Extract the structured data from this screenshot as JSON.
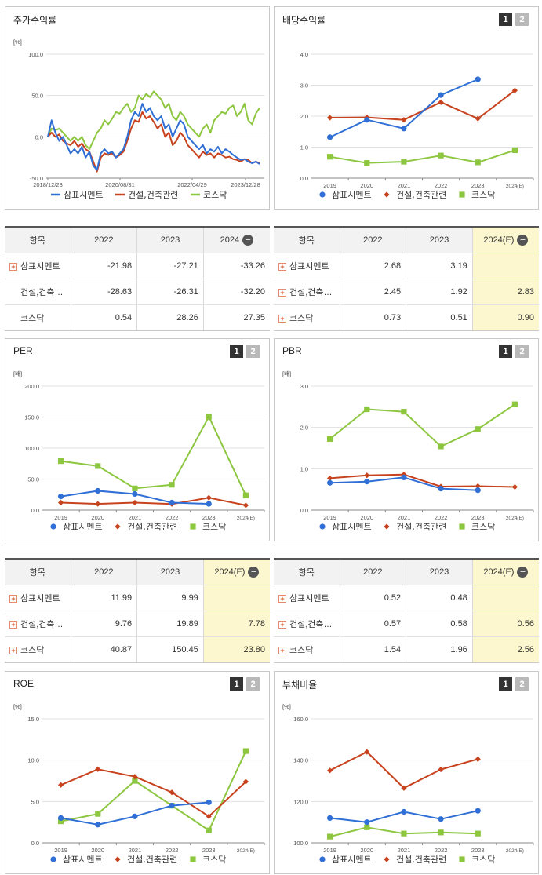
{
  "colors": {
    "series1": "#2f6fd6",
    "series2": "#c8421e",
    "series3": "#8dc63f",
    "highlight": "#fdf7cf"
  },
  "legend_items": [
    "삼표시멘트",
    "건설,건축관련",
    "코스닥"
  ],
  "chart_data": [
    {
      "id": "price",
      "type": "line",
      "title": "주가수익률",
      "unit": "[%]",
      "ylim": [
        -50,
        100
      ],
      "yticks": [
        "100.0",
        "50.0",
        "0.0",
        "-50.0"
      ],
      "xticks": [
        "2018/12/28",
        "2020/08/31",
        "2022/04/29",
        "2023/12/28"
      ],
      "series": [
        {
          "name": "삼표시멘트",
          "values": [
            0,
            20,
            5,
            -5,
            0,
            -10,
            -20,
            -15,
            -20,
            -12,
            -25,
            -18,
            -35,
            -40,
            -20,
            -15,
            -20,
            -18,
            -25,
            -20,
            -15,
            0,
            20,
            30,
            25,
            40,
            30,
            35,
            25,
            20,
            25,
            10,
            15,
            0,
            10,
            20,
            15,
            0,
            -5,
            -10,
            -15,
            -10,
            -20,
            -15,
            -18,
            -12,
            -20,
            -15,
            -18,
            -22,
            -25,
            -28,
            -27,
            -30,
            -32,
            -30,
            -33
          ]
        },
        {
          "name": "건설,건축관련",
          "values": [
            0,
            5,
            0,
            3,
            -5,
            -8,
            -10,
            -5,
            -12,
            -8,
            -15,
            -18,
            -30,
            -42,
            -25,
            -20,
            -22,
            -20,
            -25,
            -22,
            -18,
            -5,
            10,
            20,
            18,
            30,
            22,
            25,
            18,
            10,
            15,
            0,
            5,
            -10,
            -5,
            5,
            0,
            -10,
            -15,
            -20,
            -25,
            -18,
            -22,
            -20,
            -25,
            -20,
            -22,
            -25,
            -24,
            -27,
            -28,
            -30,
            -27,
            -28,
            -32,
            -30,
            -32
          ]
        },
        {
          "name": "코스닥",
          "values": [
            0,
            10,
            8,
            10,
            5,
            0,
            -5,
            0,
            -5,
            0,
            -10,
            -15,
            -5,
            5,
            10,
            20,
            15,
            22,
            30,
            28,
            35,
            40,
            30,
            35,
            50,
            45,
            52,
            48,
            55,
            50,
            45,
            35,
            40,
            25,
            20,
            30,
            25,
            15,
            10,
            5,
            0,
            10,
            15,
            5,
            20,
            25,
            30,
            28,
            35,
            38,
            25,
            30,
            40,
            20,
            15,
            28,
            35
          ]
        }
      ]
    },
    {
      "id": "dividend",
      "type": "line",
      "title": "배당수익률",
      "unit": "",
      "ylim": [
        0,
        4
      ],
      "yticks": [
        "4.0",
        "3.0",
        "2.0",
        "1.0",
        "0.0"
      ],
      "categories": [
        "2019",
        "2020",
        "2021",
        "2022",
        "2023",
        "2024(E)"
      ],
      "series": [
        {
          "name": "삼표시멘트",
          "values": [
            1.32,
            1.88,
            1.6,
            2.68,
            3.19,
            null
          ]
        },
        {
          "name": "건설,건축관련",
          "values": [
            1.95,
            1.96,
            1.88,
            2.45,
            1.92,
            2.83
          ]
        },
        {
          "name": "코스닥",
          "values": [
            0.69,
            0.49,
            0.53,
            0.73,
            0.51,
            0.9
          ]
        }
      ]
    },
    {
      "id": "per",
      "type": "line",
      "title": "PER",
      "unit": "[배]",
      "ylim": [
        0,
        200
      ],
      "yticks": [
        "200.0",
        "150.0",
        "100.0",
        "50.0",
        "0.0"
      ],
      "categories": [
        "2019",
        "2020",
        "2021",
        "2022",
        "2023",
        "2024(E)"
      ],
      "series": [
        {
          "name": "삼표시멘트",
          "values": [
            22,
            31,
            26,
            11.99,
            9.99,
            null
          ]
        },
        {
          "name": "건설,건축관련",
          "values": [
            12,
            10,
            12,
            9.76,
            19.89,
            7.78
          ]
        },
        {
          "name": "코스닥",
          "values": [
            79,
            71,
            35,
            40.87,
            150.45,
            23.8
          ]
        }
      ]
    },
    {
      "id": "pbr",
      "type": "line",
      "title": "PBR",
      "unit": "[배]",
      "ylim": [
        0,
        3
      ],
      "yticks": [
        "3.0",
        "2.0",
        "1.0",
        "0.0"
      ],
      "categories": [
        "2019",
        "2020",
        "2021",
        "2022",
        "2023",
        "2024(E)"
      ],
      "series": [
        {
          "name": "삼표시멘트",
          "values": [
            0.66,
            0.69,
            0.79,
            0.52,
            0.48,
            null
          ]
        },
        {
          "name": "건설,건축관련",
          "values": [
            0.77,
            0.84,
            0.86,
            0.57,
            0.58,
            0.56
          ]
        },
        {
          "name": "코스닥",
          "values": [
            1.72,
            2.44,
            2.38,
            1.54,
            1.96,
            2.56
          ]
        }
      ]
    },
    {
      "id": "roe",
      "type": "line",
      "title": "ROE",
      "unit": "[%]",
      "ylim": [
        0,
        15
      ],
      "yticks": [
        "15.0",
        "10.0",
        "5.0",
        "0.0"
      ],
      "categories": [
        "2019",
        "2020",
        "2021",
        "2022",
        "2023",
        "2024(E)"
      ],
      "series": [
        {
          "name": "삼표시멘트",
          "values": [
            3.0,
            2.2,
            3.2,
            4.5,
            4.9,
            null
          ]
        },
        {
          "name": "건설,건축관련",
          "values": [
            7.0,
            8.9,
            8.0,
            6.1,
            3.2,
            7.4
          ]
        },
        {
          "name": "코스닥",
          "values": [
            2.6,
            3.5,
            7.5,
            4.5,
            1.5,
            11.1
          ]
        }
      ]
    },
    {
      "id": "debt",
      "type": "line",
      "title": "부채비율",
      "unit": "[%]",
      "ylim": [
        100,
        160
      ],
      "yticks": [
        "160.0",
        "140.0",
        "120.0",
        "100.0"
      ],
      "categories": [
        "2019",
        "2020",
        "2021",
        "2022",
        "2023",
        "2024(E)"
      ],
      "series": [
        {
          "name": "삼표시멘트",
          "values": [
            112,
            110,
            115,
            111.5,
            115.5,
            null
          ]
        },
        {
          "name": "건설,건축관련",
          "values": [
            135,
            144,
            126.5,
            135.5,
            140.5,
            null
          ]
        },
        {
          "name": "코스닥",
          "values": [
            103,
            107.5,
            104.5,
            105,
            104.5,
            null
          ]
        }
      ]
    }
  ],
  "tables": {
    "price": {
      "headers": [
        "항목",
        "2022",
        "2023",
        "2024"
      ],
      "rows": [
        {
          "label": "삼표시멘트",
          "values": [
            "-21.98",
            "-27.21",
            "-33.26"
          ],
          "plus": true
        },
        {
          "label": "건설,건축…",
          "values": [
            "-28.63",
            "-26.31",
            "-32.20"
          ],
          "plus": false
        },
        {
          "label": "코스닥",
          "values": [
            "0.54",
            "28.26",
            "27.35"
          ],
          "plus": false
        }
      ]
    },
    "dividend": {
      "headers": [
        "항목",
        "2022",
        "2023",
        "2024(E)"
      ],
      "rows": [
        {
          "label": "삼표시멘트",
          "values": [
            "2.68",
            "3.19",
            ""
          ],
          "plus": true
        },
        {
          "label": "건설,건축…",
          "values": [
            "2.45",
            "1.92",
            "2.83"
          ],
          "plus": true
        },
        {
          "label": "코스닥",
          "values": [
            "0.73",
            "0.51",
            "0.90"
          ],
          "plus": true
        }
      ]
    },
    "per": {
      "headers": [
        "항목",
        "2022",
        "2023",
        "2024(E)"
      ],
      "rows": [
        {
          "label": "삼표시멘트",
          "values": [
            "11.99",
            "9.99",
            ""
          ],
          "plus": true
        },
        {
          "label": "건설,건축…",
          "values": [
            "9.76",
            "19.89",
            "7.78"
          ],
          "plus": true
        },
        {
          "label": "코스닥",
          "values": [
            "40.87",
            "150.45",
            "23.80"
          ],
          "plus": true
        }
      ]
    },
    "pbr": {
      "headers": [
        "항목",
        "2022",
        "2023",
        "2024(E)"
      ],
      "rows": [
        {
          "label": "삼표시멘트",
          "values": [
            "0.52",
            "0.48",
            ""
          ],
          "plus": true
        },
        {
          "label": "건설,건축…",
          "values": [
            "0.57",
            "0.58",
            "0.56"
          ],
          "plus": true
        },
        {
          "label": "코스닥",
          "values": [
            "1.54",
            "1.96",
            "2.56"
          ],
          "plus": true
        }
      ]
    }
  }
}
